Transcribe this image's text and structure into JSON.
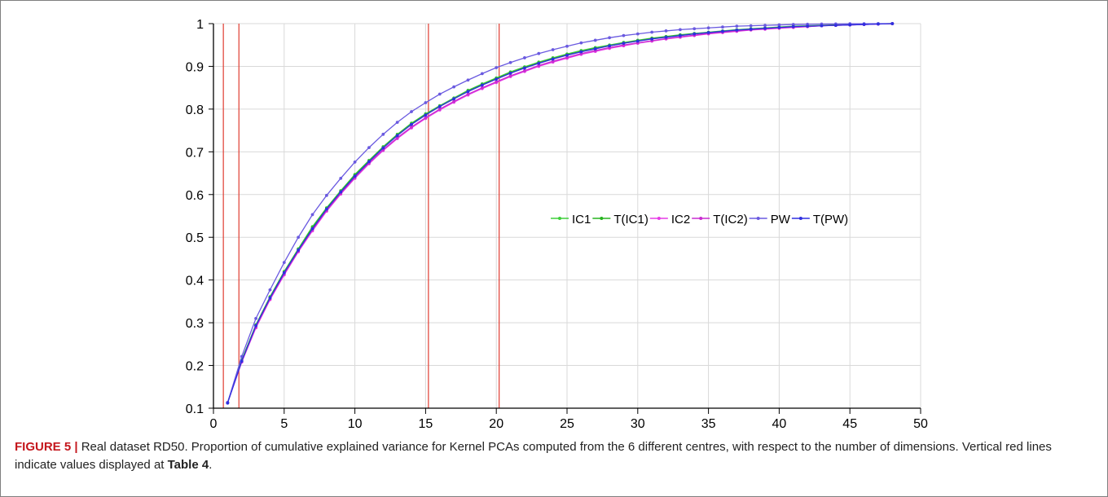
{
  "chart_data": {
    "type": "line",
    "xlim": [
      0,
      50
    ],
    "ylim": [
      0.1,
      1.0
    ],
    "x_ticks": [
      "0",
      "5",
      "10",
      "15",
      "20",
      "25",
      "30",
      "35",
      "40",
      "45",
      "50"
    ],
    "y_ticks": [
      "0.1",
      "0.2",
      "0.3",
      "0.4",
      "0.5",
      "0.6",
      "0.7",
      "0.8",
      "0.9",
      "1"
    ],
    "grid": true,
    "legend_position": "right-middle",
    "vertical_lines": [
      0.7,
      1.8,
      15.2,
      20.2
    ],
    "vertical_line_color": "#e03c31",
    "x": [
      1,
      2,
      3,
      4,
      5,
      6,
      7,
      8,
      9,
      10,
      11,
      12,
      13,
      14,
      15,
      16,
      17,
      18,
      19,
      20,
      21,
      22,
      23,
      24,
      25,
      26,
      27,
      28,
      29,
      30,
      31,
      32,
      33,
      34,
      35,
      36,
      37,
      38,
      39,
      40,
      41,
      42,
      43,
      44,
      45,
      46,
      47,
      48
    ],
    "series": [
      {
        "name": "IC1",
        "color": "#3ecf3a",
        "values": [
          0.113,
          0.213,
          0.295,
          0.361,
          0.42,
          0.473,
          0.525,
          0.569,
          0.609,
          0.647,
          0.68,
          0.712,
          0.741,
          0.767,
          0.789,
          0.808,
          0.826,
          0.844,
          0.859,
          0.873,
          0.887,
          0.899,
          0.91,
          0.92,
          0.929,
          0.937,
          0.944,
          0.95,
          0.956,
          0.961,
          0.966,
          0.97,
          0.974,
          0.977,
          0.98,
          0.983,
          0.986,
          0.988,
          0.99,
          0.992,
          0.994,
          0.995,
          0.996,
          0.997,
          0.998,
          0.999,
          0.9995,
          1.0
        ]
      },
      {
        "name": "T(IC1)",
        "color": "#27b41f",
        "values": [
          0.113,
          0.212,
          0.294,
          0.359,
          0.418,
          0.471,
          0.522,
          0.567,
          0.607,
          0.645,
          0.678,
          0.71,
          0.739,
          0.765,
          0.787,
          0.806,
          0.824,
          0.842,
          0.857,
          0.871,
          0.885,
          0.897,
          0.908,
          0.918,
          0.927,
          0.935,
          0.942,
          0.948,
          0.954,
          0.96,
          0.965,
          0.969,
          0.973,
          0.976,
          0.979,
          0.982,
          0.985,
          0.987,
          0.989,
          0.991,
          0.993,
          0.994,
          0.996,
          0.997,
          0.998,
          0.999,
          0.9995,
          1.0
        ]
      },
      {
        "name": "IC2",
        "color": "#e63be6",
        "values": [
          0.113,
          0.208,
          0.288,
          0.354,
          0.412,
          0.466,
          0.515,
          0.561,
          0.601,
          0.638,
          0.672,
          0.703,
          0.731,
          0.756,
          0.778,
          0.798,
          0.816,
          0.833,
          0.848,
          0.862,
          0.876,
          0.888,
          0.9,
          0.91,
          0.919,
          0.928,
          0.935,
          0.942,
          0.948,
          0.954,
          0.959,
          0.964,
          0.968,
          0.972,
          0.976,
          0.979,
          0.982,
          0.985,
          0.987,
          0.989,
          0.991,
          0.993,
          0.995,
          0.996,
          0.997,
          0.998,
          0.999,
          1.0
        ]
      },
      {
        "name": "T(IC2)",
        "color": "#c92bd0",
        "values": [
          0.113,
          0.209,
          0.29,
          0.356,
          0.414,
          0.468,
          0.518,
          0.563,
          0.603,
          0.64,
          0.674,
          0.705,
          0.733,
          0.758,
          0.78,
          0.8,
          0.818,
          0.835,
          0.85,
          0.864,
          0.878,
          0.89,
          0.902,
          0.912,
          0.921,
          0.93,
          0.937,
          0.944,
          0.95,
          0.955,
          0.96,
          0.965,
          0.969,
          0.973,
          0.977,
          0.98,
          0.983,
          0.986,
          0.988,
          0.99,
          0.992,
          0.993,
          0.995,
          0.996,
          0.997,
          0.998,
          0.999,
          1.0
        ]
      },
      {
        "name": "PW",
        "color": "#6a5ae0",
        "values": [
          0.113,
          0.221,
          0.31,
          0.377,
          0.441,
          0.5,
          0.553,
          0.598,
          0.638,
          0.676,
          0.71,
          0.741,
          0.769,
          0.794,
          0.815,
          0.835,
          0.852,
          0.868,
          0.883,
          0.897,
          0.909,
          0.92,
          0.93,
          0.939,
          0.947,
          0.955,
          0.961,
          0.967,
          0.972,
          0.976,
          0.98,
          0.983,
          0.986,
          0.988,
          0.99,
          0.992,
          0.994,
          0.995,
          0.996,
          0.997,
          0.998,
          0.9985,
          0.999,
          0.9993,
          0.9996,
          0.9998,
          0.9999,
          1.0
        ]
      },
      {
        "name": "T(PW)",
        "color": "#2f2fe0",
        "values": [
          0.112,
          0.21,
          0.293,
          0.358,
          0.417,
          0.47,
          0.52,
          0.566,
          0.606,
          0.643,
          0.677,
          0.709,
          0.738,
          0.764,
          0.786,
          0.806,
          0.824,
          0.841,
          0.856,
          0.87,
          0.884,
          0.896,
          0.907,
          0.917,
          0.926,
          0.934,
          0.941,
          0.948,
          0.954,
          0.959,
          0.964,
          0.968,
          0.972,
          0.976,
          0.979,
          0.982,
          0.985,
          0.987,
          0.989,
          0.991,
          0.993,
          0.994,
          0.995,
          0.996,
          0.997,
          0.998,
          0.999,
          1.0
        ]
      }
    ]
  },
  "caption": {
    "figure_label": "FIGURE 5 |",
    "text_before": " Real dataset RD50. Proportion of cumulative explained variance for Kernel PCAs computed from the 6 different centres, with respect to the number of dimensions. Vertical red lines indicate values displayed at ",
    "table_ref": "Table 4",
    "text_after": "."
  }
}
